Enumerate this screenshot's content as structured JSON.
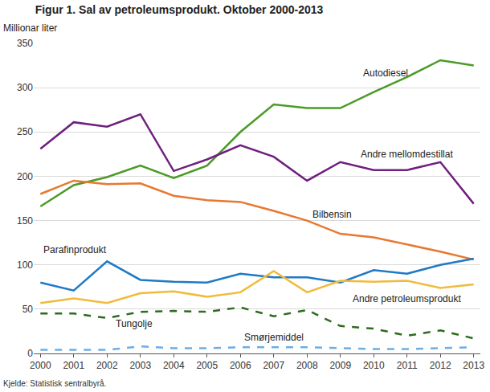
{
  "chart_data": {
    "type": "line",
    "title": "Figur 1. Sal av petroleumsprodukt. Oktober 2000-2013",
    "y_label": "Millionar liter",
    "source": "Kjelde: Statistisk sentralbyrå.",
    "x": [
      2000,
      2001,
      2002,
      2003,
      2004,
      2005,
      2006,
      2007,
      2008,
      2009,
      2010,
      2011,
      2012,
      2013
    ],
    "xlim": [
      1999.8,
      2013.2
    ],
    "xticks": [
      2000,
      2001,
      2002,
      2003,
      2004,
      2005,
      2006,
      2007,
      2008,
      2009,
      2010,
      2011,
      2012,
      2013
    ],
    "ylim": [
      0,
      350
    ],
    "yticks": [
      0,
      50,
      100,
      150,
      200,
      250,
      300,
      350
    ],
    "grid": true,
    "series": [
      {
        "name": "Autodiesel",
        "color": "#4b9b26",
        "line_style": "solid",
        "values": [
          166,
          190,
          199,
          212,
          198,
          212,
          250,
          281,
          277,
          277,
          295,
          312,
          331,
          325
        ]
      },
      {
        "name": "Andre mellomdestillat",
        "color": "#6f1f7f",
        "line_style": "solid",
        "values": [
          231,
          261,
          256,
          270,
          206,
          219,
          235,
          222,
          195,
          216,
          207,
          207,
          216,
          169
        ]
      },
      {
        "name": "Bilbensin",
        "color": "#e87830",
        "line_style": "solid",
        "values": [
          180,
          195,
          191,
          192,
          178,
          173,
          171,
          161,
          150,
          135,
          131,
          123,
          115,
          106
        ]
      },
      {
        "name": "Parafinprodukt",
        "color": "#1f7ac4",
        "line_style": "solid",
        "values": [
          80,
          71,
          104,
          83,
          81,
          80,
          90,
          86,
          86,
          80,
          94,
          90,
          100,
          107
        ]
      },
      {
        "name": "Andre petroleumsprodukt",
        "color": "#f0bb3a",
        "line_style": "solid",
        "values": [
          57,
          62,
          57,
          68,
          70,
          64,
          69,
          93,
          69,
          82,
          81,
          82,
          74,
          78
        ]
      },
      {
        "name": "Tungolje",
        "color": "#2e6b1f",
        "line_style": "dash",
        "values": [
          45,
          45,
          40,
          47,
          48,
          47,
          52,
          42,
          49,
          31,
          28,
          20,
          26,
          17
        ]
      },
      {
        "name": "Smørjemiddel",
        "color": "#6aaee6",
        "line_style": "dash",
        "values": [
          4,
          4,
          4,
          8,
          6,
          6,
          7,
          7,
          7,
          6,
          5,
          5,
          6,
          7
        ]
      }
    ]
  }
}
